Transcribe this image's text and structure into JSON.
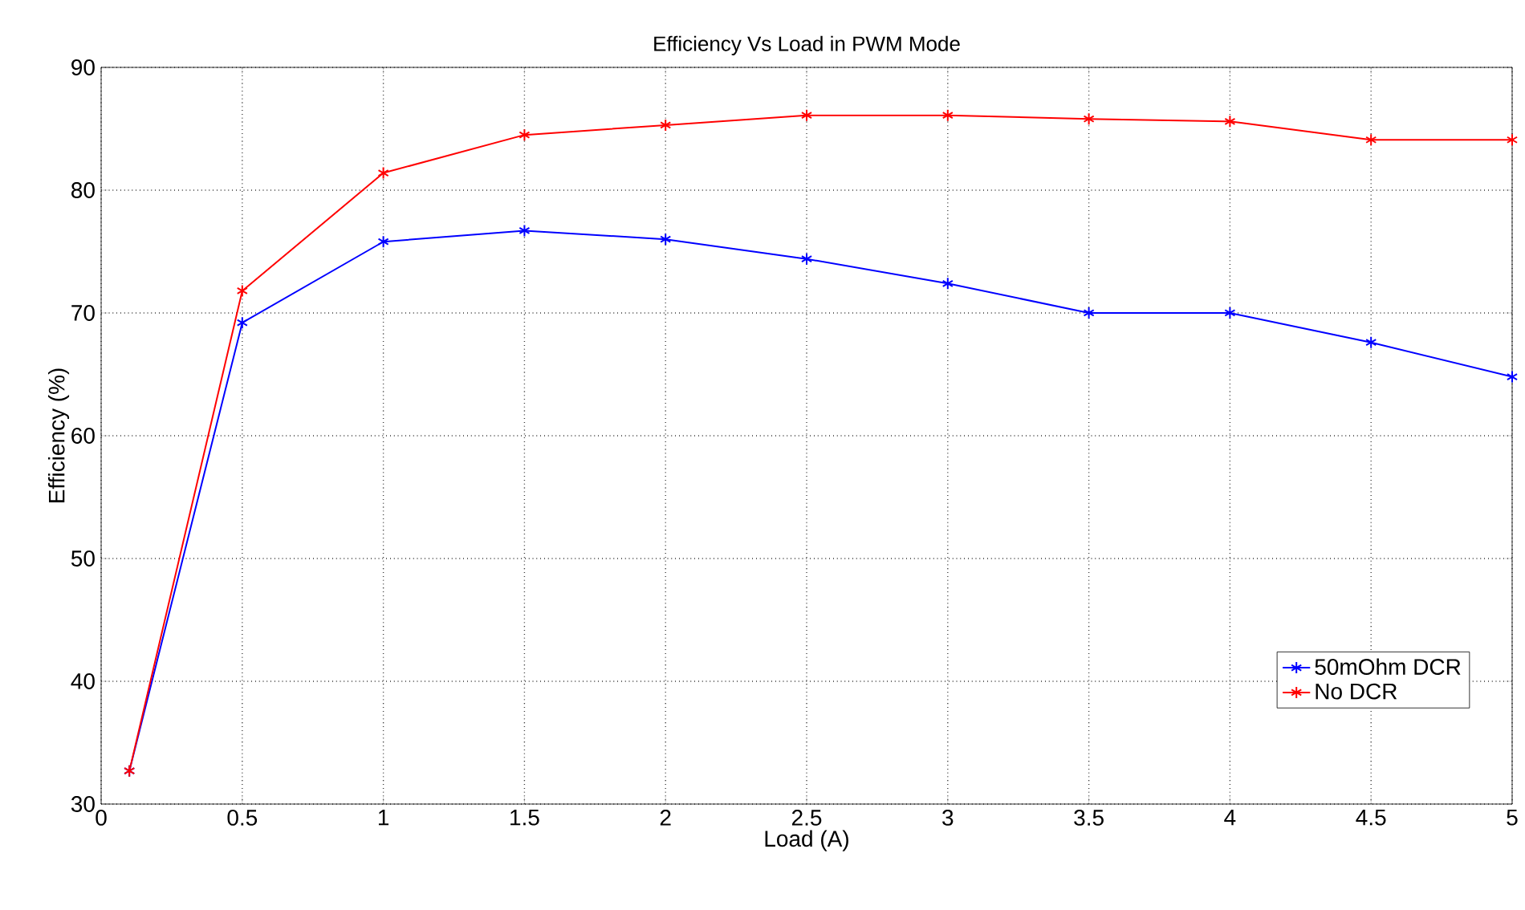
{
  "chart_data": {
    "type": "line",
    "title": "Efficiency Vs Load in PWM Mode",
    "xlabel": "Load (A)",
    "ylabel": "Efficiency (%)",
    "x": [
      0.1,
      0.5,
      1,
      1.5,
      2,
      2.5,
      3,
      3.5,
      4,
      4.5,
      5
    ],
    "series": [
      {
        "name": "50mOhm DCR",
        "color": "#0000ff",
        "values": [
          32.7,
          69.2,
          75.8,
          76.7,
          76.0,
          74.4,
          72.4,
          70.0,
          70.0,
          67.6,
          64.8
        ]
      },
      {
        "name": "No DCR",
        "color": "#ff0000",
        "values": [
          32.7,
          71.8,
          81.4,
          84.5,
          85.3,
          86.1,
          86.1,
          85.8,
          85.6,
          84.1,
          84.1
        ]
      }
    ],
    "xlim": [
      0,
      5
    ],
    "xticks": [
      0,
      0.5,
      1,
      1.5,
      2,
      2.5,
      3,
      3.5,
      4,
      4.5,
      5
    ],
    "ylim": [
      30,
      90
    ],
    "yticks": [
      30,
      40,
      50,
      60,
      70,
      80,
      90
    ],
    "grid": true,
    "legend": "bottom right",
    "marker": "cross",
    "line_style": "solid"
  }
}
